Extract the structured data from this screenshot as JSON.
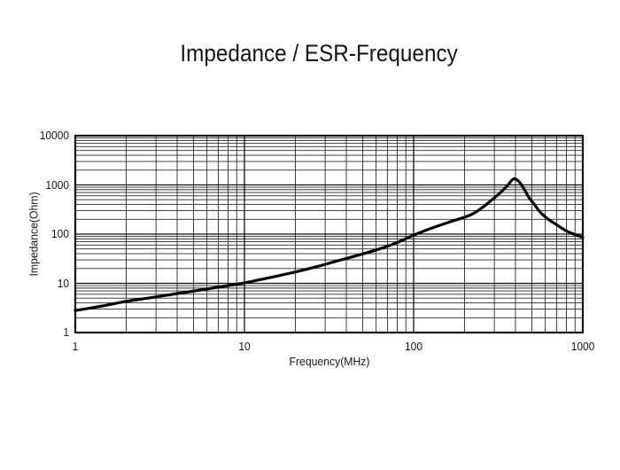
{
  "page": {
    "background": "#ffffff"
  },
  "chart_data": {
    "type": "line",
    "title": "Impedance / ESR-Frequency",
    "xlabel": "Frequency(MHz)",
    "ylabel": "Impedance(Ohm)",
    "x_scale": "log",
    "y_scale": "log",
    "x_range": [
      1,
      1000
    ],
    "y_range": [
      1,
      10000
    ],
    "x_ticks": [
      1,
      10,
      100,
      1000
    ],
    "y_ticks": [
      1,
      10,
      100,
      1000,
      10000
    ],
    "x_tick_labels": [
      "1",
      "10",
      "100",
      "1000"
    ],
    "y_tick_labels": [
      "1",
      "10",
      "100",
      "1000",
      "10000"
    ],
    "grid": {
      "major": true,
      "minor": true
    },
    "legend": "none",
    "line_color": "#000000",
    "grid_color": "#2a2a2a",
    "series": [
      {
        "name": "Impedance",
        "points": [
          [
            1,
            2.8
          ],
          [
            1.4,
            3.4
          ],
          [
            2,
            4.3
          ],
          [
            2.8,
            5.1
          ],
          [
            4,
            6.2
          ],
          [
            5.6,
            7.4
          ],
          [
            8,
            9.0
          ],
          [
            10,
            10.2
          ],
          [
            14,
            13
          ],
          [
            20,
            17
          ],
          [
            27,
            22
          ],
          [
            36,
            29
          ],
          [
            48,
            38
          ],
          [
            64,
            51
          ],
          [
            82,
            70
          ],
          [
            100,
            95
          ],
          [
            130,
            135
          ],
          [
            170,
            185
          ],
          [
            214,
            240
          ],
          [
            250,
            330
          ],
          [
            285,
            470
          ],
          [
            320,
            660
          ],
          [
            355,
            930
          ],
          [
            390,
            1320
          ],
          [
            420,
            1160
          ],
          [
            450,
            820
          ],
          [
            480,
            560
          ],
          [
            520,
            390
          ],
          [
            560,
            280
          ],
          [
            620,
            205
          ],
          [
            700,
            155
          ],
          [
            800,
            116
          ],
          [
            900,
            98
          ],
          [
            1000,
            86
          ]
        ]
      }
    ]
  }
}
